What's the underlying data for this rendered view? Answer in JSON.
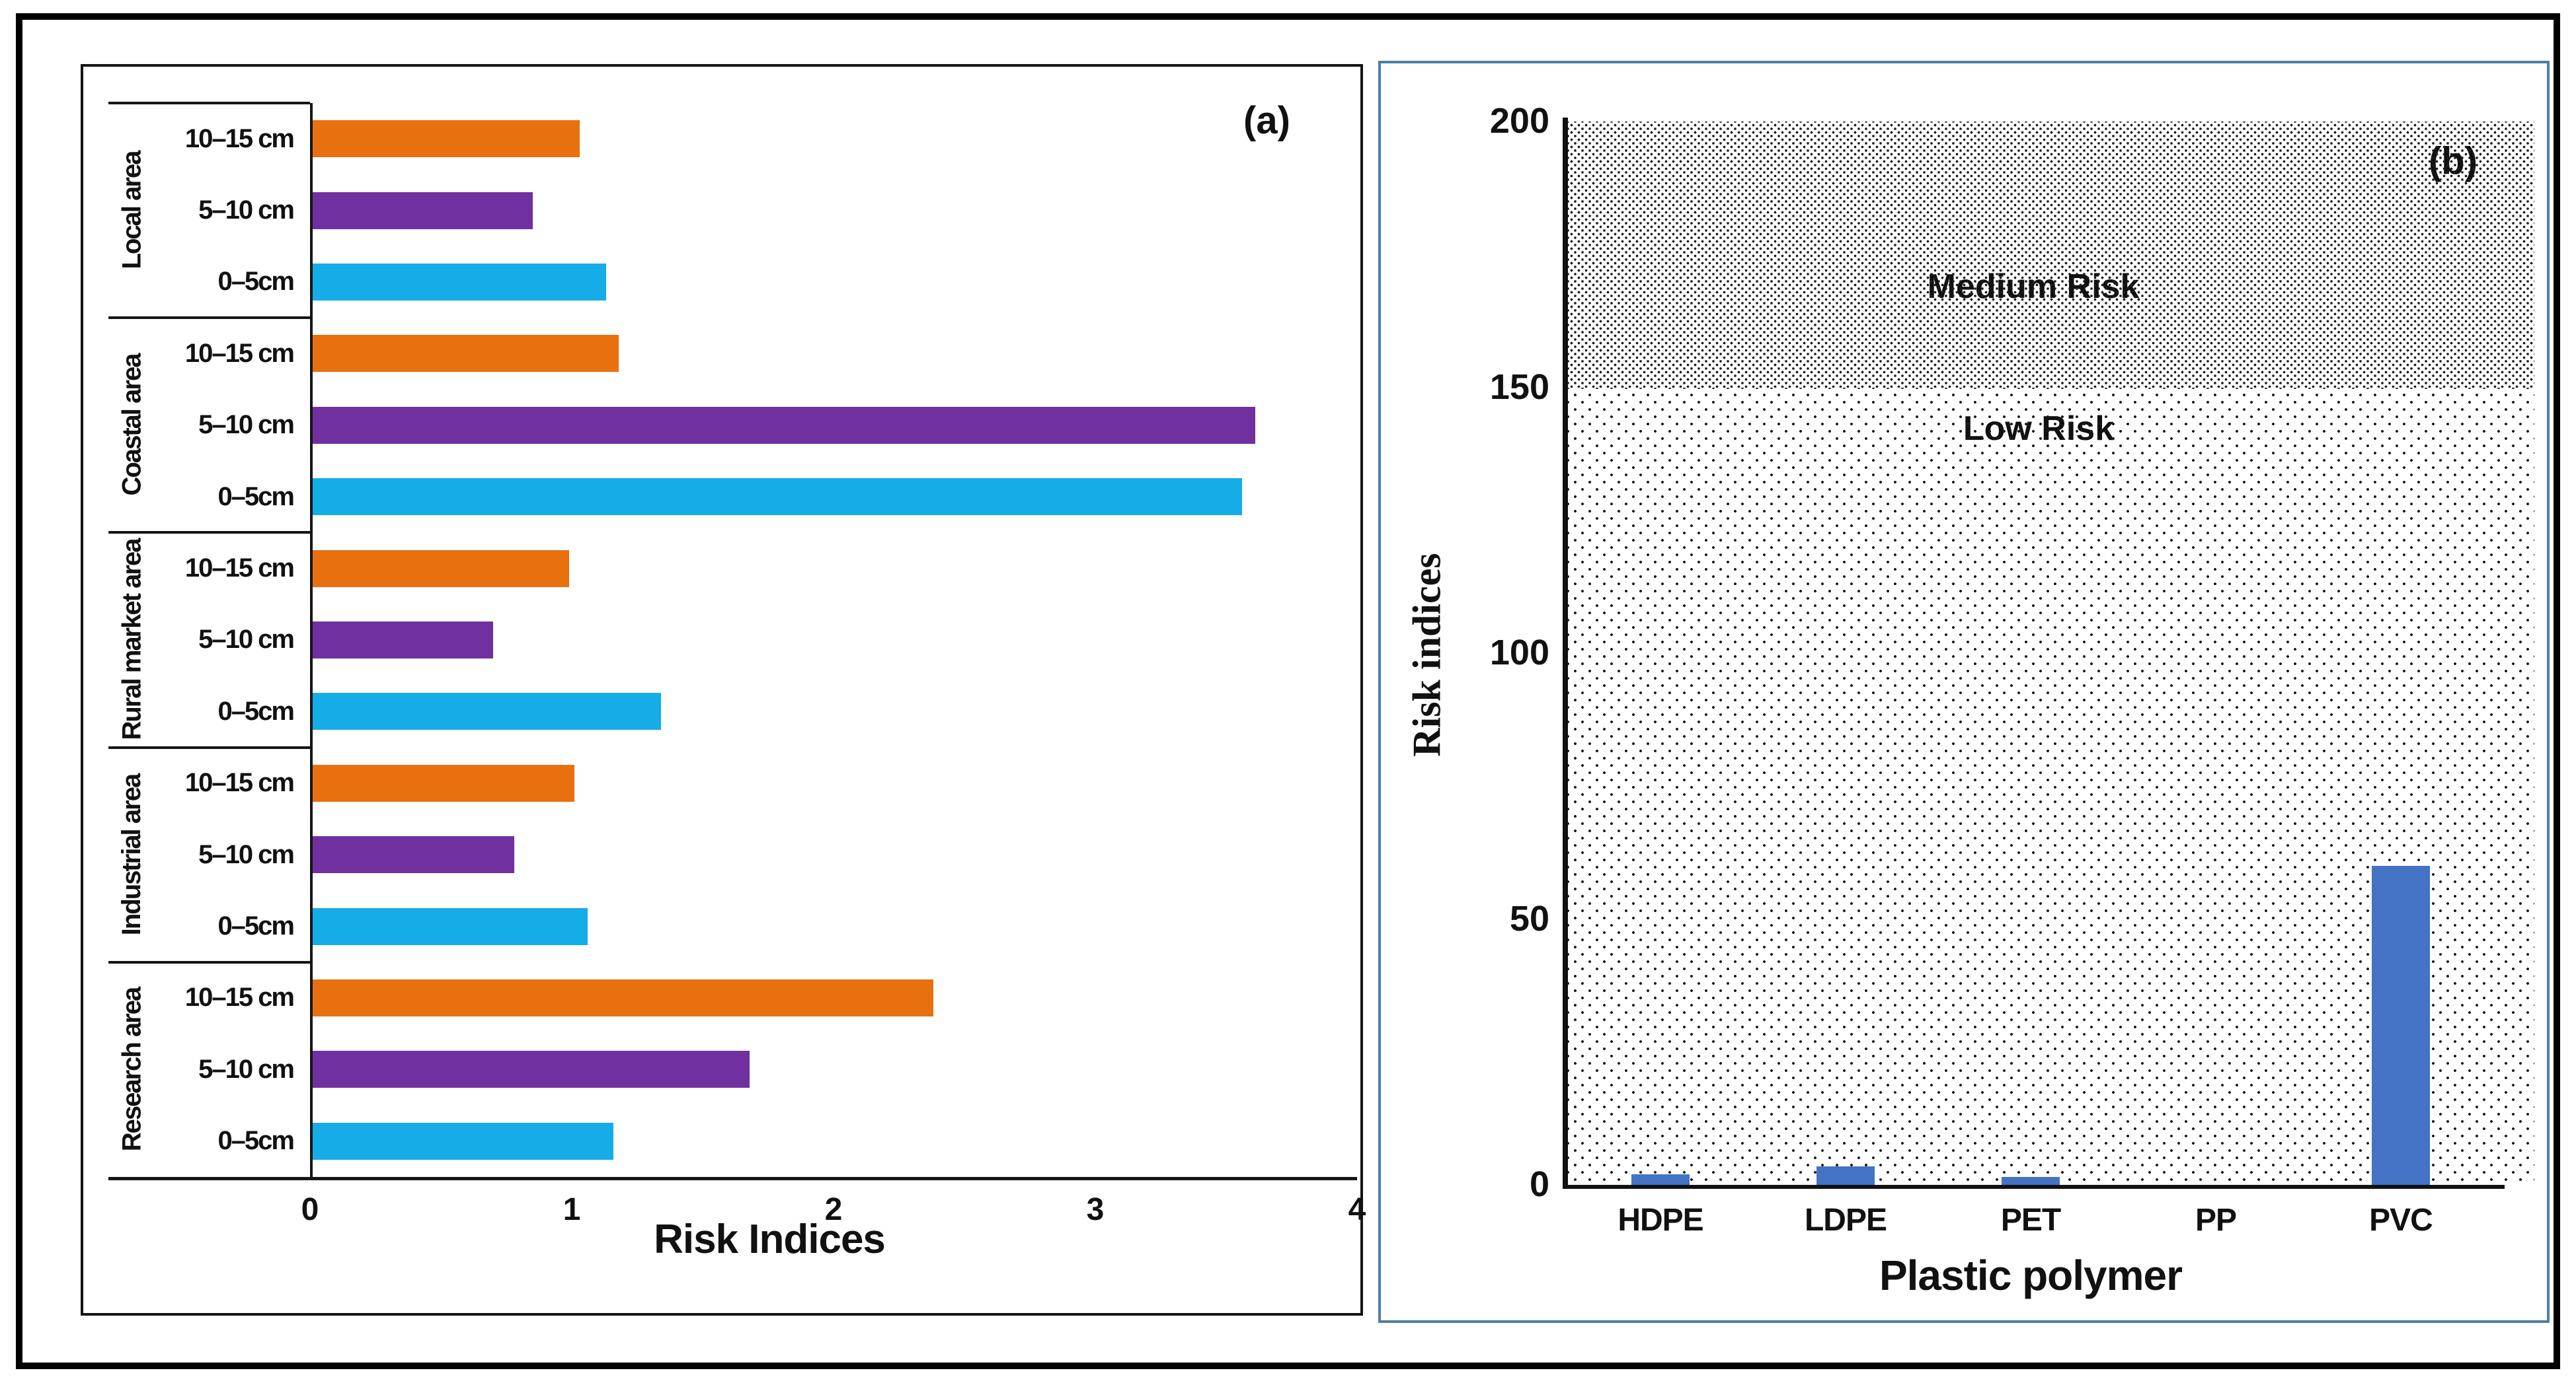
{
  "figure": {
    "panel_a": {
      "label": "(a)",
      "x_axis_title": "Risk Indices",
      "x_ticks": [
        "0",
        "1",
        "2",
        "3",
        "4"
      ],
      "x_max": 4,
      "depth_colors": {
        "10–15 cm": "#E8700E",
        "5–10 cm": "#7030A0",
        "0–5cm": "#15ACE8"
      },
      "groups": [
        {
          "area": "Local area",
          "bars": [
            {
              "depth": "10–15 cm",
              "value": 1.02
            },
            {
              "depth": "5–10 cm",
              "value": 0.84
            },
            {
              "depth": "0–5cm",
              "value": 1.12
            }
          ]
        },
        {
          "area": "Coastal area",
          "bars": [
            {
              "depth": "10–15 cm",
              "value": 1.17
            },
            {
              "depth": "5–10 cm",
              "value": 3.6
            },
            {
              "depth": "0–5cm",
              "value": 3.55
            }
          ]
        },
        {
          "area": "Rural market area",
          "bars": [
            {
              "depth": "10–15 cm",
              "value": 0.98
            },
            {
              "depth": "5–10 cm",
              "value": 0.69
            },
            {
              "depth": "0–5cm",
              "value": 1.33
            }
          ]
        },
        {
          "area": "Industrial area",
          "bars": [
            {
              "depth": "10–15 cm",
              "value": 1.0
            },
            {
              "depth": "5–10 cm",
              "value": 0.77
            },
            {
              "depth": "0–5cm",
              "value": 1.05
            }
          ]
        },
        {
          "area": "Research area",
          "bars": [
            {
              "depth": "10–15 cm",
              "value": 2.37
            },
            {
              "depth": "5–10 cm",
              "value": 1.67
            },
            {
              "depth": "0–5cm",
              "value": 1.15
            }
          ]
        }
      ]
    },
    "panel_b": {
      "label": "(b)",
      "x_axis_title": "Plastic polymer",
      "y_axis_title": "Risk indices",
      "y_ticks": [
        "0",
        "50",
        "100",
        "150",
        "200"
      ],
      "y_max": 200,
      "bar_color": "#4472C4",
      "border_color": "#4E80A0",
      "regions": [
        {
          "label": "Medium Risk",
          "from": 150,
          "to": 200
        },
        {
          "label": "Low Risk",
          "from": 0,
          "to": 150
        }
      ],
      "categories": [
        "HDPE",
        "LDPE",
        "PET",
        "PP",
        "PVC"
      ],
      "values": [
        2,
        3.5,
        1.5,
        0,
        60
      ]
    }
  },
  "chart_data": [
    {
      "type": "bar",
      "panel": "(a)",
      "orientation": "horizontal",
      "title": "",
      "xlabel": "Risk Indices",
      "ylabel": "",
      "xlim": [
        0,
        4
      ],
      "x_ticks": [
        0,
        1,
        2,
        3,
        4
      ],
      "grid": false,
      "legend_position": "none (depth labels printed on axis)",
      "categories": [
        "Local area",
        "Coastal area",
        "Rural market area",
        "Industrial area",
        "Research area"
      ],
      "series": [
        {
          "name": "10–15 cm",
          "color": "#E8700E",
          "values": [
            1.02,
            1.17,
            0.98,
            1.0,
            2.37
          ]
        },
        {
          "name": "5–10 cm",
          "color": "#7030A0",
          "values": [
            0.84,
            3.6,
            0.69,
            0.77,
            1.67
          ]
        },
        {
          "name": "0–5cm",
          "color": "#15ACE8",
          "values": [
            1.12,
            3.55,
            1.33,
            1.05,
            1.15
          ]
        }
      ]
    },
    {
      "type": "bar",
      "panel": "(b)",
      "orientation": "vertical",
      "title": "",
      "xlabel": "Plastic polymer",
      "ylabel": "Risk indices",
      "ylim": [
        0,
        200
      ],
      "y_ticks": [
        0,
        50,
        100,
        150,
        200
      ],
      "grid": false,
      "bar_color": "#4472C4",
      "categories": [
        "HDPE",
        "LDPE",
        "PET",
        "PP",
        "PVC"
      ],
      "values": [
        2,
        3.5,
        1.5,
        0,
        60
      ],
      "annotations": [
        {
          "text": "Medium Risk",
          "region": [
            150,
            200
          ],
          "pattern": "dense dots"
        },
        {
          "text": "Low Risk",
          "region": [
            0,
            150
          ],
          "pattern": "sparse dots"
        }
      ]
    }
  ]
}
